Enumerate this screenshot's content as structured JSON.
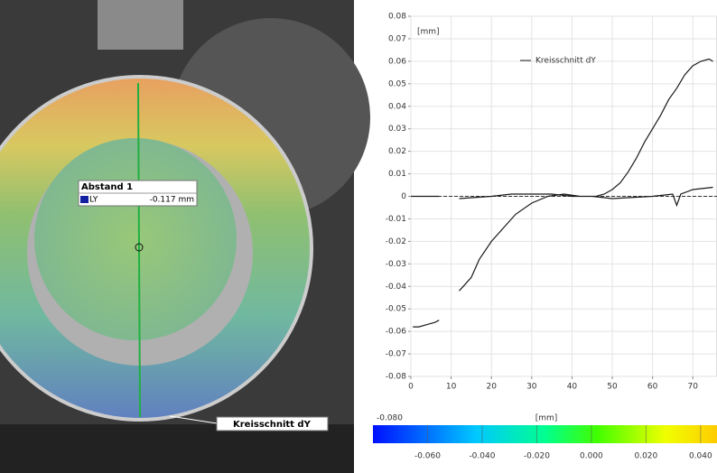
{
  "image": {
    "gauge_title": "Abstand 1",
    "gauge_name": "LY",
    "gauge_value": "-0.117 mm",
    "section_label": "Kreisschnitt dY"
  },
  "chart_data": [
    {
      "type": "line",
      "ylabel": "[mm]",
      "x": [
        0.5,
        2,
        4,
        6,
        7,
        7,
        0,
        2,
        4,
        7,
        7,
        12,
        13,
        15,
        17,
        20,
        23,
        26,
        30,
        34,
        38,
        42,
        46,
        48,
        50,
        52,
        54,
        56,
        58,
        60,
        62,
        64,
        66,
        68,
        70,
        72,
        74,
        75,
        75,
        75,
        70,
        67,
        66,
        65,
        60,
        50,
        45,
        40,
        35,
        30,
        25,
        20,
        12
      ],
      "series": [
        {
          "name": "Kreisschnitt dY",
          "color": "#1a1a1a",
          "values": [
            -0.058,
            -0.058,
            -0.057,
            -0.056,
            -0.055,
            null,
            0,
            0,
            0,
            0,
            null,
            -0.042,
            -0.04,
            -0.036,
            -0.028,
            -0.02,
            -0.014,
            -0.008,
            -0.003,
            0,
            0.001,
            0,
            0,
            0.001,
            0.003,
            0.006,
            0.011,
            0.017,
            0.024,
            0.03,
            0.036,
            0.043,
            0.048,
            0.054,
            0.058,
            0.06,
            0.061,
            0.06,
            null,
            0.004,
            0.003,
            0.001,
            -0.004,
            0.001,
            0,
            -0.001,
            0,
            0,
            0.001,
            0.001,
            0.001,
            0,
            -0.001
          ]
        }
      ],
      "xlim": [
        0,
        76
      ],
      "xticks": [
        0,
        10,
        20,
        30,
        40,
        50,
        60,
        70
      ],
      "ylim": [
        -0.08,
        0.08
      ],
      "yticks": [
        0.08,
        0.07,
        0.06,
        0.05,
        0.04,
        0.03,
        0.02,
        0.01,
        0,
        -0.01,
        -0.02,
        -0.03,
        -0.04,
        -0.05,
        -0.06,
        -0.07,
        -0.08
      ],
      "grid": true
    },
    {
      "type": "colorbar",
      "label": "[mm]",
      "xlim": [
        -0.08,
        0.046
      ],
      "xticks": [
        {
          "value": -0.08,
          "label": "-0.080"
        },
        {
          "value": -0.06,
          "label": "-0.060"
        },
        {
          "value": -0.04,
          "label": "-0.040"
        },
        {
          "value": -0.02,
          "label": "-0.020"
        },
        {
          "value": 0,
          "label": "0.000"
        },
        {
          "value": 0.02,
          "label": "0.020"
        },
        {
          "value": 0.04,
          "label": "0.040"
        }
      ]
    }
  ]
}
